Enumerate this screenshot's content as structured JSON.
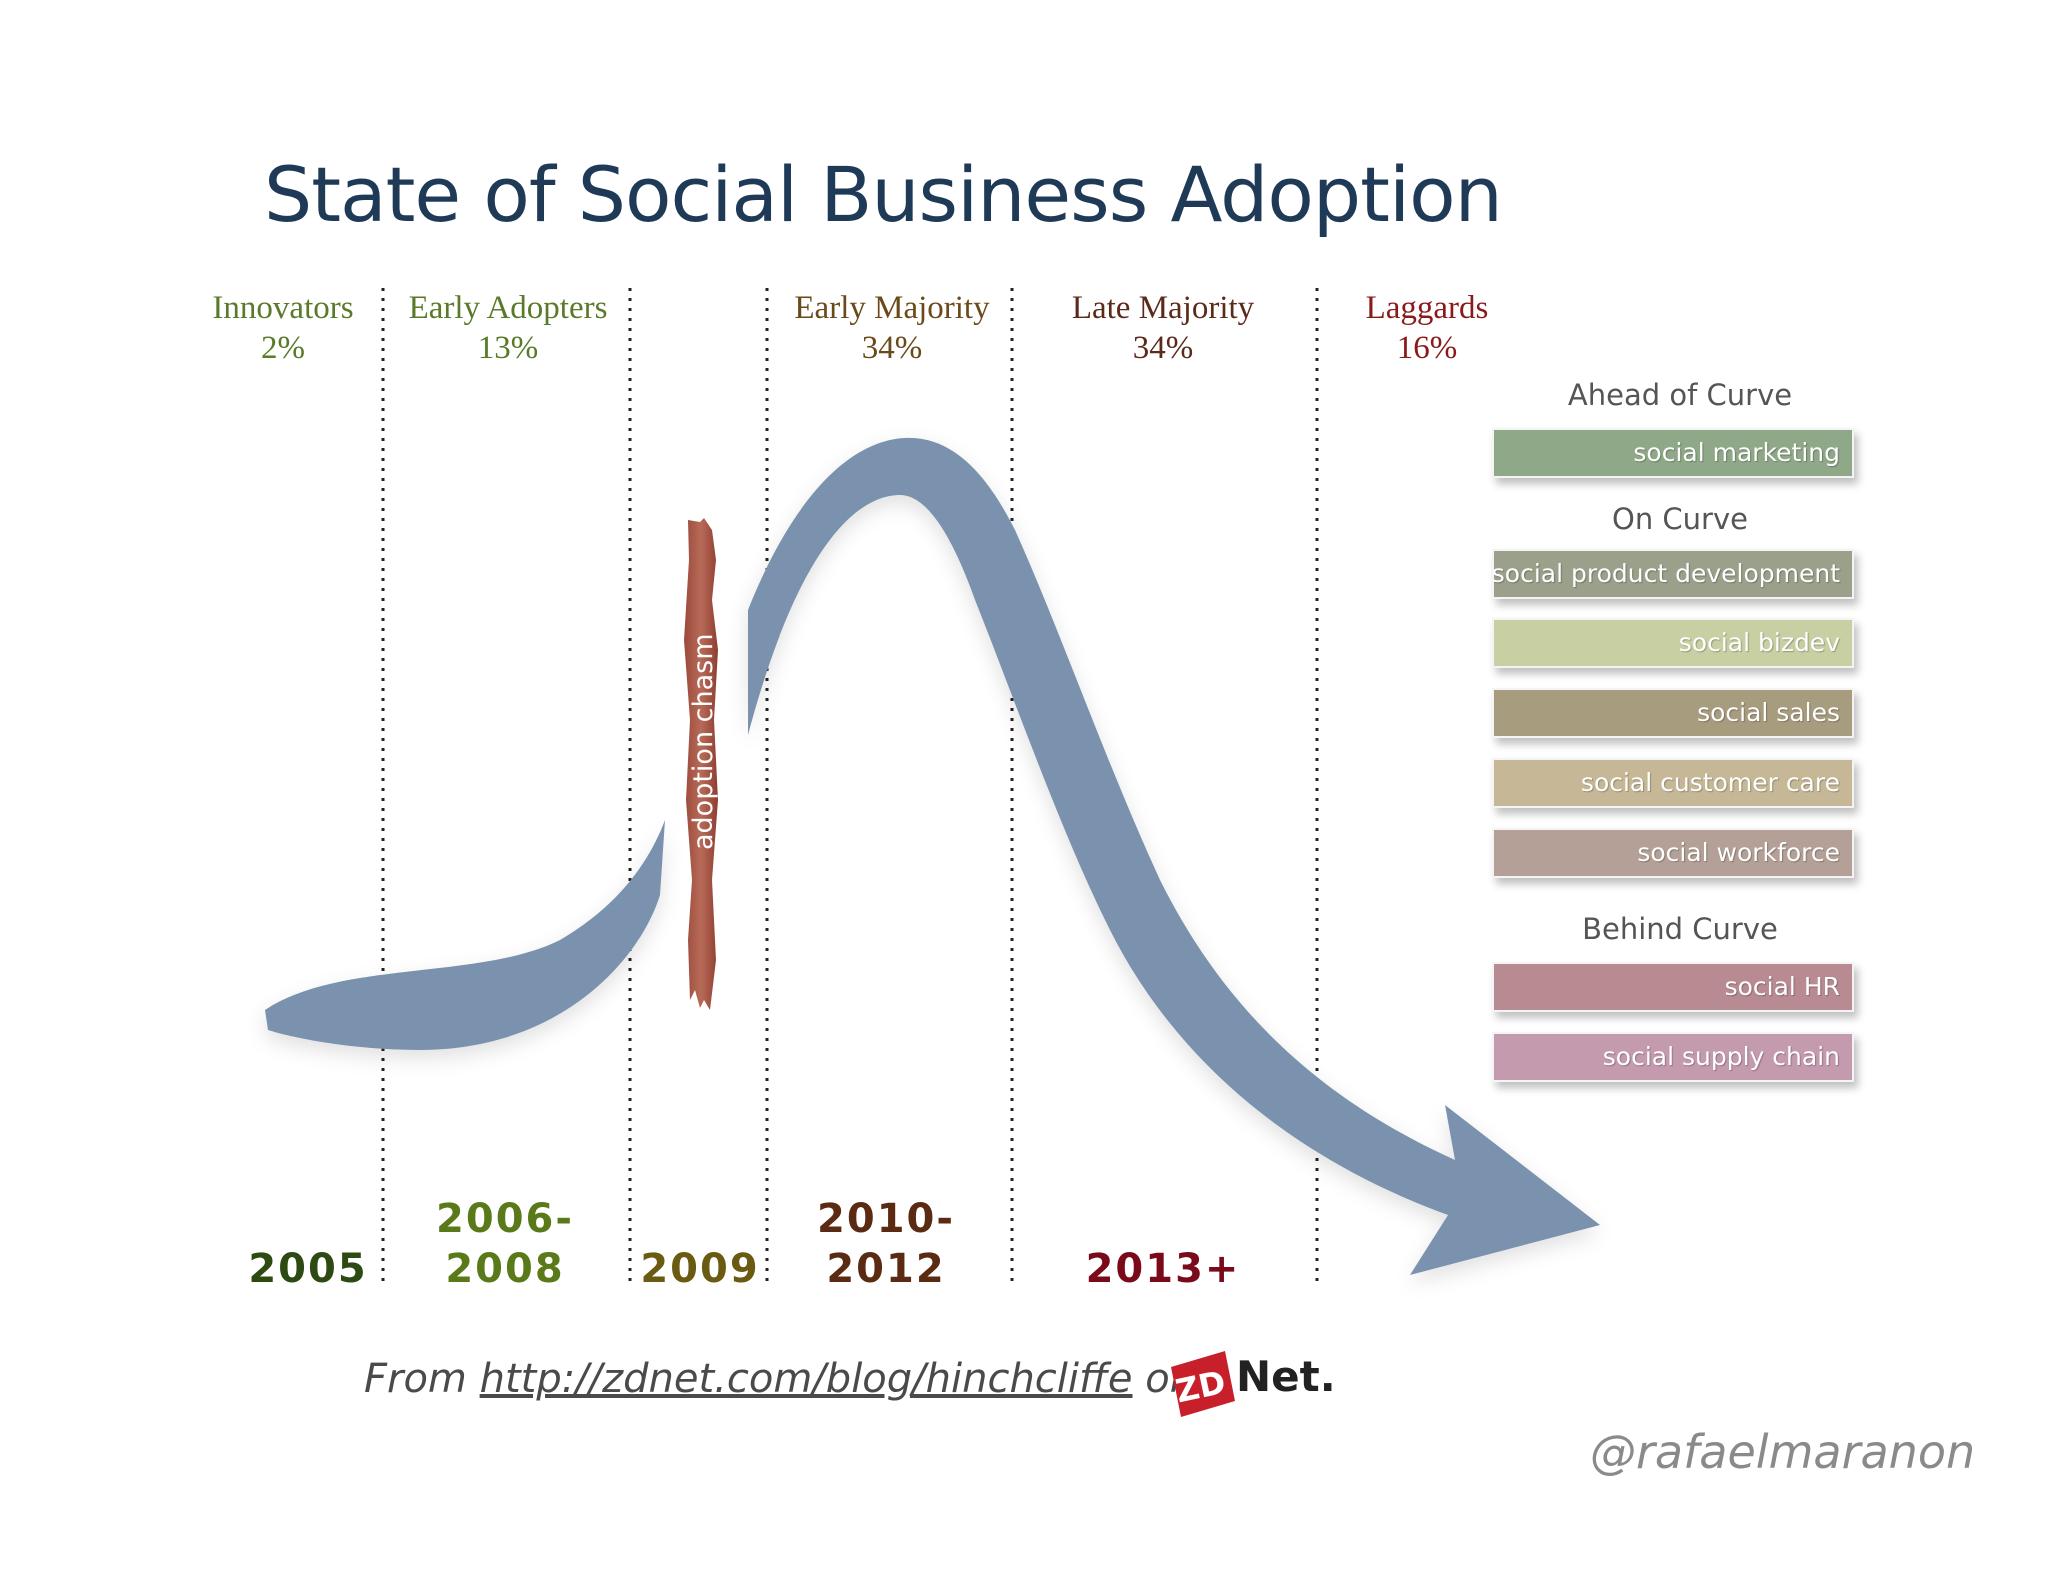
{
  "title": "State of Social Business Adoption",
  "segments": [
    {
      "name": "Innovators",
      "share": "2%",
      "color": "#5a7a2a"
    },
    {
      "name": "Early Adopters",
      "share": "13%",
      "color": "#5a7a2a"
    },
    {
      "name": "Early Majority",
      "share": "34%",
      "color": "#6b4a1a"
    },
    {
      "name": "Late Majority",
      "share": "34%",
      "color": "#5a2a1a"
    },
    {
      "name": "Laggards",
      "share": "16%",
      "color": "#8a1a1a"
    }
  ],
  "years": [
    {
      "label": "2005",
      "color": "#2d4a12"
    },
    {
      "line1": "2006-",
      "line2": "2008",
      "color": "#5a7a1a"
    },
    {
      "label": "2009",
      "color": "#6b5a12"
    },
    {
      "line1": "2010-",
      "line2": "2012",
      "color": "#5a2a12"
    },
    {
      "label": "2013+",
      "color": "#7a0a1a"
    }
  ],
  "chasm_label": "adoption chasm",
  "groups": {
    "ahead": {
      "label": "Ahead of Curve",
      "items": [
        {
          "label": "social marketing",
          "color": "#8fa888"
        }
      ]
    },
    "on": {
      "label": "On Curve",
      "items": [
        {
          "label": "social product development",
          "color": "#9aa08a"
        },
        {
          "label": "social bizdev",
          "color": "#c8cfa2"
        },
        {
          "label": "social sales",
          "color": "#a89c7e"
        },
        {
          "label": "social customer care",
          "color": "#c6b896"
        },
        {
          "label": "social workforce",
          "color": "#b4a096"
        }
      ]
    },
    "behind": {
      "label": "Behind Curve",
      "items": [
        {
          "label": "social HR",
          "color": "#b88a92"
        },
        {
          "label": "social supply chain",
          "color": "#c49aae"
        }
      ]
    }
  },
  "source": {
    "prefix": "From",
    "url": "http://zdnet.com/blog/hinchcliffe",
    "suffix": "on"
  },
  "logo": {
    "zd": "ZD",
    "net": "Net."
  },
  "handle": "@rafaelmaranon",
  "colors": {
    "curve": "#7a92ad",
    "chasm": "#a85a4a",
    "title": "#1f3a57"
  }
}
